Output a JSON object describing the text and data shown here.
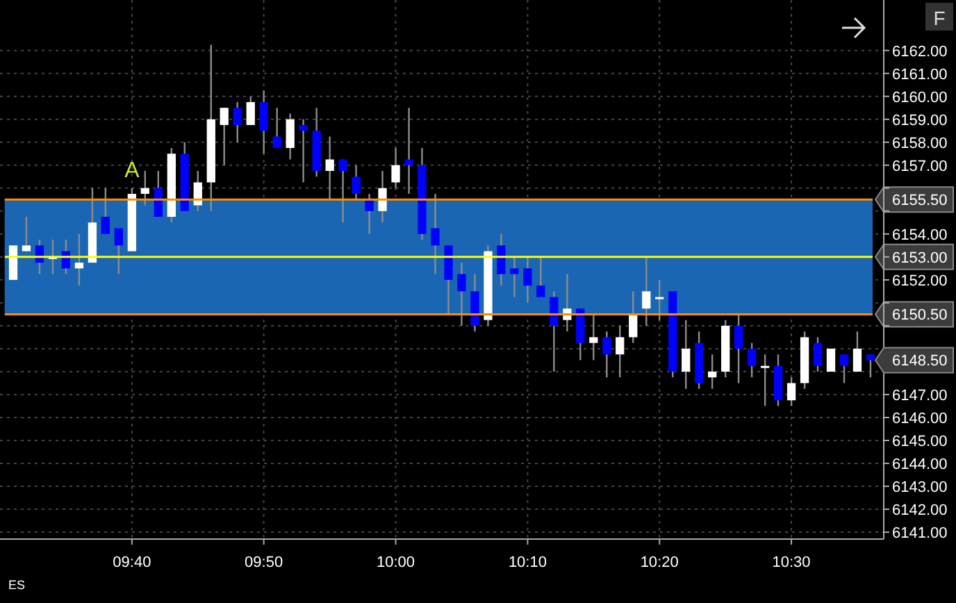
{
  "chart_data": {
    "type": "candlestick",
    "x": [
      9.5167,
      9.5333,
      9.55,
      9.5667,
      9.5833,
      9.6,
      9.6167,
      9.6333,
      9.65,
      9.6667,
      9.6833,
      9.7,
      9.7167,
      9.7333,
      9.75,
      9.7667,
      9.7833,
      9.8,
      9.8167,
      9.8333,
      9.85,
      9.8667,
      9.8833,
      9.9,
      9.9167,
      9.9333,
      9.95,
      9.9667,
      9.9833,
      10.0,
      10.0167,
      10.0333,
      10.05,
      10.0667,
      10.0833,
      10.1,
      10.1167,
      10.1333,
      10.15,
      10.1667,
      10.1833,
      10.2,
      10.2167,
      10.2333,
      10.25,
      10.2667,
      10.2833,
      10.3,
      10.3167,
      10.3333,
      10.35,
      10.3667,
      10.3833,
      10.4,
      10.4167,
      10.4333,
      10.45,
      10.4667,
      10.4833,
      10.5,
      10.5167,
      10.5333,
      10.55,
      10.5667,
      10.5833,
      10.6
    ],
    "ohlc": [
      [
        6152.0,
        6153.5,
        6152.0,
        6153.5
      ],
      [
        6153.25,
        6154.75,
        6153.25,
        6153.5
      ],
      [
        6153.5,
        6153.75,
        6152.25,
        6152.75
      ],
      [
        6153.0,
        6153.75,
        6152.25,
        6153.0
      ],
      [
        6153.25,
        6153.75,
        6152.25,
        6152.5
      ],
      [
        6152.5,
        6154.0,
        6151.75,
        6152.75
      ],
      [
        6152.75,
        6156.0,
        6152.75,
        6154.5
      ],
      [
        6154.75,
        6156.0,
        6154.0,
        6154.0
      ],
      [
        6154.25,
        6154.25,
        6152.25,
        6153.5
      ],
      [
        6153.25,
        6156.0,
        6153.25,
        6155.75
      ],
      [
        6155.75,
        6156.75,
        6155.25,
        6156.0
      ],
      [
        6156.0,
        6156.75,
        6154.75,
        6154.75
      ],
      [
        6154.75,
        6157.75,
        6154.5,
        6157.5
      ],
      [
        6157.5,
        6158.0,
        6155.0,
        6155.0
      ],
      [
        6155.25,
        6156.75,
        6155.0,
        6156.25
      ],
      [
        6156.25,
        6162.25,
        6155.0,
        6159.0
      ],
      [
        6158.75,
        6159.5,
        6157.0,
        6159.5
      ],
      [
        6159.5,
        6159.75,
        6158.0,
        6158.75
      ],
      [
        6158.75,
        6160.0,
        6158.75,
        6159.75
      ],
      [
        6159.75,
        6160.25,
        6157.5,
        6158.5
      ],
      [
        6158.25,
        6159.5,
        6157.75,
        6157.75
      ],
      [
        6157.75,
        6159.25,
        6157.25,
        6159.0
      ],
      [
        6158.75,
        6159.0,
        6156.25,
        6158.5
      ],
      [
        6158.5,
        6159.5,
        6156.5,
        6156.75
      ],
      [
        6156.75,
        6158.25,
        6155.5,
        6157.25
      ],
      [
        6157.25,
        6157.25,
        6154.5,
        6156.75
      ],
      [
        6156.5,
        6157.0,
        6155.5,
        6155.75
      ],
      [
        6155.5,
        6155.75,
        6154.0,
        6155.0
      ],
      [
        6155.0,
        6156.75,
        6154.5,
        6156.0
      ],
      [
        6156.25,
        6157.75,
        6156.0,
        6157.0
      ],
      [
        6157.25,
        6159.5,
        6155.75,
        6157.0
      ],
      [
        6157.0,
        6157.75,
        6153.75,
        6154.0
      ],
      [
        6154.25,
        6155.75,
        6152.25,
        6153.5
      ],
      [
        6153.5,
        6153.5,
        6150.5,
        6152.0
      ],
      [
        6152.25,
        6152.75,
        6150.0,
        6151.5
      ],
      [
        6151.5,
        6152.25,
        6149.75,
        6150.0
      ],
      [
        6150.25,
        6153.5,
        6150.0,
        6153.25
      ],
      [
        6153.5,
        6154.0,
        6151.75,
        6152.25
      ],
      [
        6152.5,
        6153.0,
        6151.25,
        6152.25
      ],
      [
        6152.5,
        6153.0,
        6151.0,
        6151.75
      ],
      [
        6151.75,
        6153.0,
        6151.25,
        6151.25
      ],
      [
        6151.25,
        6151.5,
        6148.0,
        6150.0
      ],
      [
        6150.25,
        6152.25,
        6149.75,
        6150.75
      ],
      [
        6150.75,
        6150.75,
        6148.5,
        6149.25
      ],
      [
        6149.25,
        6150.5,
        6148.5,
        6149.5
      ],
      [
        6149.5,
        6149.75,
        6147.75,
        6148.75
      ],
      [
        6148.75,
        6150.0,
        6147.75,
        6149.5
      ],
      [
        6149.5,
        6151.5,
        6149.25,
        6150.5
      ],
      [
        6150.75,
        6153.0,
        6150.0,
        6151.5
      ],
      [
        6151.25,
        6152.0,
        6150.25,
        6151.25
      ],
      [
        6151.5,
        6151.5,
        6147.75,
        6148.0
      ],
      [
        6148.0,
        6150.25,
        6147.25,
        6149.0
      ],
      [
        6149.25,
        6149.75,
        6147.25,
        6147.5
      ],
      [
        6147.75,
        6148.75,
        6147.25,
        6148.0
      ],
      [
        6148.0,
        6150.25,
        6147.75,
        6150.0
      ],
      [
        6150.0,
        6150.5,
        6147.5,
        6149.0
      ],
      [
        6149.0,
        6149.25,
        6147.75,
        6148.25
      ],
      [
        6148.25,
        6148.75,
        6146.5,
        6148.25
      ],
      [
        6148.25,
        6148.75,
        6146.5,
        6146.75
      ],
      [
        6146.75,
        6147.75,
        6146.5,
        6147.5
      ],
      [
        6147.5,
        6149.75,
        6147.25,
        6149.5
      ],
      [
        6149.25,
        6149.5,
        6148.0,
        6148.25
      ],
      [
        6148.0,
        6149.0,
        6148.0,
        6149.0
      ],
      [
        6148.75,
        6148.75,
        6147.5,
        6148.25
      ],
      [
        6148.0,
        6149.75,
        6148.0,
        6149.0
      ],
      [
        6148.75,
        6148.75,
        6147.75,
        6148.5
      ]
    ],
    "colors": [
      "#ffffff",
      "#ffffff",
      "#0000ff",
      "#ffffff",
      "#0000ff",
      "#ffffff",
      "#ffffff",
      "#0000ff",
      "#0000ff",
      "#ffffff",
      "#ffffff",
      "#0000ff",
      "#ffffff",
      "#0000ff",
      "#ffffff",
      "#ffffff",
      "#ffffff",
      "#0000ff",
      "#ffffff",
      "#0000ff",
      "#0000ff",
      "#ffffff",
      "#0000ff",
      "#0000ff",
      "#ffffff",
      "#0000ff",
      "#0000ff",
      "#0000ff",
      "#ffffff",
      "#ffffff",
      "#0000ff",
      "#0000ff",
      "#0000ff",
      "#0000ff",
      "#0000ff",
      "#0000ff",
      "#ffffff",
      "#0000ff",
      "#0000ff",
      "#0000ff",
      "#0000ff",
      "#0000ff",
      "#ffffff",
      "#0000ff",
      "#ffffff",
      "#0000ff",
      "#ffffff",
      "#ffffff",
      "#ffffff",
      "#ffffff",
      "#0000ff",
      "#ffffff",
      "#0000ff",
      "#ffffff",
      "#ffffff",
      "#0000ff",
      "#0000ff",
      "#ffffff",
      "#0000ff",
      "#ffffff",
      "#ffffff",
      "#0000ff",
      "#ffffff",
      "#0000ff",
      "#ffffff",
      "#0000ff"
    ],
    "xlim": [
      9.5,
      10.6167
    ],
    "xticks": [
      {
        "value": 9.6667,
        "label": "09:40"
      },
      {
        "value": 9.8333,
        "label": "09:50"
      },
      {
        "value": 10.0,
        "label": "10:00"
      },
      {
        "value": 10.1667,
        "label": "10:10"
      },
      {
        "value": 10.3333,
        "label": "10:20"
      },
      {
        "value": 10.5,
        "label": "10:30"
      }
    ],
    "ylim": [
      6140.7,
      6164.2
    ],
    "yticks": [
      {
        "value": 6141,
        "label": "6141.00"
      },
      {
        "value": 6142,
        "label": "6142.00"
      },
      {
        "value": 6143,
        "label": "6143.00"
      },
      {
        "value": 6144,
        "label": "6144.00"
      },
      {
        "value": 6145,
        "label": "6145.00"
      },
      {
        "value": 6146,
        "label": "6146.00"
      },
      {
        "value": 6147,
        "label": "6147.00"
      },
      {
        "value": 6148,
        "label": null
      },
      {
        "value": 6149,
        "label": null
      },
      {
        "value": 6150,
        "label": null
      },
      {
        "value": 6151,
        "label": null
      },
      {
        "value": 6152,
        "label": "6152.00"
      },
      {
        "value": 6153,
        "label": null
      },
      {
        "value": 6154,
        "label": "6154.00"
      },
      {
        "value": 6155,
        "label": null
      },
      {
        "value": 6156,
        "label": null
      },
      {
        "value": 6157,
        "label": "6157.00"
      },
      {
        "value": 6158,
        "label": "6158.00"
      },
      {
        "value": 6159,
        "label": "6159.00"
      },
      {
        "value": 6160,
        "label": "6160.00"
      },
      {
        "value": 6161,
        "label": "6161.00"
      },
      {
        "value": 6162,
        "label": "6162.00"
      }
    ],
    "grid": true,
    "bands": [
      {
        "axis": "y",
        "from": 6150.5,
        "to": 6155.5,
        "color": "#1a66b3"
      }
    ],
    "ref_lines": [
      {
        "axis": "y",
        "value": 6155.5,
        "label": "6155.50",
        "color": "#ff8c00"
      },
      {
        "axis": "y",
        "value": 6153.0,
        "label": "6153.00",
        "color": "#ffff00"
      },
      {
        "axis": "y",
        "value": 6150.5,
        "label": "6150.50",
        "color": "#ff8c00"
      }
    ],
    "annotations": [
      "A",
      "6148.50",
      "ES",
      "F"
    ]
  }
}
